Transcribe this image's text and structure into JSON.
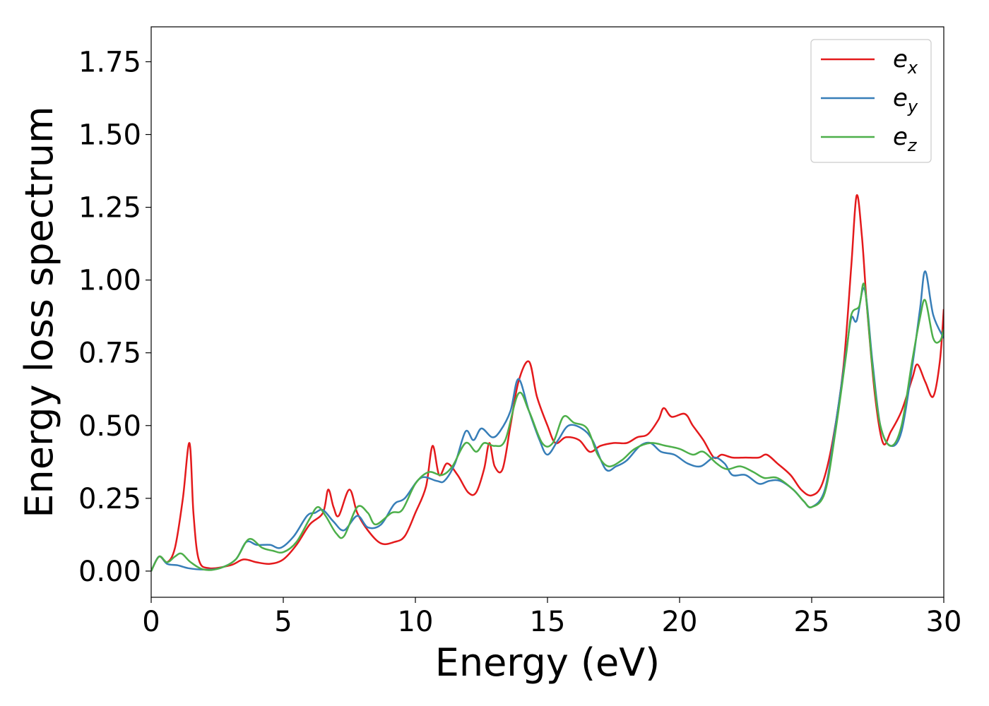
{
  "chart_data": {
    "type": "line",
    "xlabel": "Energy (eV)",
    "ylabel": "Energy loss spectrum",
    "xlim": [
      0,
      30
    ],
    "ylim": [
      -0.09,
      1.87
    ],
    "xticks": [
      "0",
      "5",
      "10",
      "15",
      "20",
      "25",
      "30"
    ],
    "yticks": [
      "0.00",
      "0.25",
      "0.50",
      "0.75",
      "1.00",
      "1.25",
      "1.50",
      "1.75"
    ],
    "grid": false,
    "legend_position": "top-right",
    "series": [
      {
        "name": "e_x",
        "label_base": "e",
        "label_sub": "x",
        "color": "#e41a1c",
        "points": [
          [
            0,
            0.0
          ],
          [
            0.3,
            0.05
          ],
          [
            0.6,
            0.03
          ],
          [
            0.9,
            0.08
          ],
          [
            1.2,
            0.25
          ],
          [
            1.45,
            0.44
          ],
          [
            1.6,
            0.2
          ],
          [
            1.8,
            0.04
          ],
          [
            2.2,
            0.01
          ],
          [
            3.0,
            0.02
          ],
          [
            3.5,
            0.04
          ],
          [
            4.0,
            0.03
          ],
          [
            4.5,
            0.025
          ],
          [
            5.0,
            0.04
          ],
          [
            5.5,
            0.09
          ],
          [
            6.0,
            0.16
          ],
          [
            6.5,
            0.2
          ],
          [
            6.7,
            0.28
          ],
          [
            6.9,
            0.22
          ],
          [
            7.1,
            0.19
          ],
          [
            7.5,
            0.28
          ],
          [
            7.8,
            0.2
          ],
          [
            8.2,
            0.14
          ],
          [
            8.7,
            0.095
          ],
          [
            9.2,
            0.1
          ],
          [
            9.6,
            0.12
          ],
          [
            10.0,
            0.2
          ],
          [
            10.4,
            0.29
          ],
          [
            10.65,
            0.43
          ],
          [
            10.9,
            0.33
          ],
          [
            11.2,
            0.37
          ],
          [
            11.6,
            0.33
          ],
          [
            12.0,
            0.27
          ],
          [
            12.3,
            0.27
          ],
          [
            12.6,
            0.35
          ],
          [
            12.8,
            0.44
          ],
          [
            13.0,
            0.36
          ],
          [
            13.3,
            0.35
          ],
          [
            13.6,
            0.5
          ],
          [
            13.9,
            0.65
          ],
          [
            14.3,
            0.72
          ],
          [
            14.6,
            0.6
          ],
          [
            15.0,
            0.5
          ],
          [
            15.3,
            0.44
          ],
          [
            15.7,
            0.46
          ],
          [
            16.2,
            0.45
          ],
          [
            16.6,
            0.41
          ],
          [
            17.0,
            0.43
          ],
          [
            17.5,
            0.44
          ],
          [
            18.0,
            0.44
          ],
          [
            18.4,
            0.46
          ],
          [
            18.8,
            0.47
          ],
          [
            19.2,
            0.52
          ],
          [
            19.4,
            0.56
          ],
          [
            19.7,
            0.53
          ],
          [
            20.2,
            0.54
          ],
          [
            20.5,
            0.5
          ],
          [
            20.9,
            0.45
          ],
          [
            21.3,
            0.39
          ],
          [
            21.6,
            0.4
          ],
          [
            22.0,
            0.39
          ],
          [
            22.5,
            0.39
          ],
          [
            23.0,
            0.39
          ],
          [
            23.3,
            0.4
          ],
          [
            23.7,
            0.37
          ],
          [
            24.2,
            0.33
          ],
          [
            24.6,
            0.28
          ],
          [
            25.0,
            0.26
          ],
          [
            25.4,
            0.3
          ],
          [
            25.8,
            0.45
          ],
          [
            26.2,
            0.7
          ],
          [
            26.5,
            1.05
          ],
          [
            26.7,
            1.29
          ],
          [
            26.9,
            1.15
          ],
          [
            27.1,
            0.9
          ],
          [
            27.4,
            0.6
          ],
          [
            27.7,
            0.44
          ],
          [
            28.0,
            0.48
          ],
          [
            28.4,
            0.55
          ],
          [
            28.8,
            0.66
          ],
          [
            29.0,
            0.71
          ],
          [
            29.3,
            0.65
          ],
          [
            29.6,
            0.6
          ],
          [
            29.85,
            0.72
          ],
          [
            30.0,
            0.9
          ]
        ]
      },
      {
        "name": "e_y",
        "label_base": "e",
        "label_sub": "y",
        "color": "#377eb8",
        "points": [
          [
            0,
            0.0
          ],
          [
            0.3,
            0.05
          ],
          [
            0.6,
            0.025
          ],
          [
            1.0,
            0.02
          ],
          [
            1.4,
            0.01
          ],
          [
            2.0,
            0.005
          ],
          [
            2.6,
            0.01
          ],
          [
            3.2,
            0.04
          ],
          [
            3.6,
            0.1
          ],
          [
            4.0,
            0.09
          ],
          [
            4.5,
            0.09
          ],
          [
            4.9,
            0.08
          ],
          [
            5.4,
            0.12
          ],
          [
            5.9,
            0.19
          ],
          [
            6.2,
            0.2
          ],
          [
            6.5,
            0.21
          ],
          [
            6.9,
            0.17
          ],
          [
            7.3,
            0.14
          ],
          [
            7.8,
            0.19
          ],
          [
            8.2,
            0.15
          ],
          [
            8.7,
            0.16
          ],
          [
            9.2,
            0.23
          ],
          [
            9.6,
            0.25
          ],
          [
            10.2,
            0.32
          ],
          [
            10.8,
            0.31
          ],
          [
            11.1,
            0.31
          ],
          [
            11.5,
            0.37
          ],
          [
            11.9,
            0.48
          ],
          [
            12.2,
            0.45
          ],
          [
            12.5,
            0.49
          ],
          [
            12.9,
            0.46
          ],
          [
            13.2,
            0.48
          ],
          [
            13.6,
            0.55
          ],
          [
            13.9,
            0.66
          ],
          [
            14.3,
            0.55
          ],
          [
            14.7,
            0.45
          ],
          [
            15.0,
            0.4
          ],
          [
            15.4,
            0.45
          ],
          [
            15.8,
            0.5
          ],
          [
            16.3,
            0.49
          ],
          [
            16.7,
            0.45
          ],
          [
            17.2,
            0.35
          ],
          [
            17.6,
            0.36
          ],
          [
            18.0,
            0.38
          ],
          [
            18.5,
            0.43
          ],
          [
            18.9,
            0.44
          ],
          [
            19.3,
            0.41
          ],
          [
            19.8,
            0.4
          ],
          [
            20.3,
            0.37
          ],
          [
            20.8,
            0.36
          ],
          [
            21.3,
            0.39
          ],
          [
            21.7,
            0.37
          ],
          [
            22.0,
            0.33
          ],
          [
            22.5,
            0.33
          ],
          [
            23.0,
            0.3
          ],
          [
            23.4,
            0.31
          ],
          [
            23.8,
            0.31
          ],
          [
            24.3,
            0.28
          ],
          [
            24.7,
            0.24
          ],
          [
            25.0,
            0.22
          ],
          [
            25.5,
            0.28
          ],
          [
            25.9,
            0.5
          ],
          [
            26.3,
            0.75
          ],
          [
            26.5,
            0.87
          ],
          [
            26.7,
            0.86
          ],
          [
            27.0,
            0.97
          ],
          [
            27.3,
            0.72
          ],
          [
            27.6,
            0.5
          ],
          [
            28.0,
            0.43
          ],
          [
            28.4,
            0.48
          ],
          [
            28.8,
            0.7
          ],
          [
            29.1,
            0.9
          ],
          [
            29.3,
            1.03
          ],
          [
            29.6,
            0.88
          ],
          [
            30.0,
            0.8
          ]
        ]
      },
      {
        "name": "e_z",
        "label_base": "e",
        "label_sub": "z",
        "color": "#4daf4a",
        "points": [
          [
            0,
            0.0
          ],
          [
            0.3,
            0.05
          ],
          [
            0.6,
            0.03
          ],
          [
            0.9,
            0.05
          ],
          [
            1.15,
            0.06
          ],
          [
            1.5,
            0.03
          ],
          [
            2.0,
            0.005
          ],
          [
            2.6,
            0.01
          ],
          [
            3.2,
            0.04
          ],
          [
            3.7,
            0.11
          ],
          [
            4.2,
            0.08
          ],
          [
            4.6,
            0.07
          ],
          [
            5.0,
            0.065
          ],
          [
            5.5,
            0.1
          ],
          [
            6.0,
            0.18
          ],
          [
            6.3,
            0.22
          ],
          [
            6.6,
            0.19
          ],
          [
            7.0,
            0.13
          ],
          [
            7.3,
            0.12
          ],
          [
            7.8,
            0.22
          ],
          [
            8.2,
            0.2
          ],
          [
            8.5,
            0.16
          ],
          [
            9.1,
            0.2
          ],
          [
            9.5,
            0.21
          ],
          [
            10.0,
            0.3
          ],
          [
            10.5,
            0.34
          ],
          [
            11.0,
            0.33
          ],
          [
            11.4,
            0.36
          ],
          [
            11.9,
            0.44
          ],
          [
            12.3,
            0.41
          ],
          [
            12.6,
            0.44
          ],
          [
            13.0,
            0.43
          ],
          [
            13.4,
            0.45
          ],
          [
            13.9,
            0.61
          ],
          [
            14.3,
            0.55
          ],
          [
            14.8,
            0.44
          ],
          [
            15.2,
            0.44
          ],
          [
            15.6,
            0.53
          ],
          [
            16.0,
            0.51
          ],
          [
            16.5,
            0.49
          ],
          [
            16.9,
            0.4
          ],
          [
            17.3,
            0.36
          ],
          [
            17.8,
            0.38
          ],
          [
            18.3,
            0.42
          ],
          [
            18.9,
            0.44
          ],
          [
            19.5,
            0.43
          ],
          [
            20.0,
            0.42
          ],
          [
            20.5,
            0.4
          ],
          [
            20.9,
            0.41
          ],
          [
            21.4,
            0.37
          ],
          [
            21.8,
            0.35
          ],
          [
            22.3,
            0.36
          ],
          [
            22.8,
            0.34
          ],
          [
            23.2,
            0.32
          ],
          [
            23.7,
            0.32
          ],
          [
            24.3,
            0.28
          ],
          [
            24.7,
            0.24
          ],
          [
            25.0,
            0.22
          ],
          [
            25.5,
            0.27
          ],
          [
            25.9,
            0.48
          ],
          [
            26.3,
            0.74
          ],
          [
            26.5,
            0.88
          ],
          [
            26.8,
            0.91
          ],
          [
            27.0,
            0.98
          ],
          [
            27.3,
            0.7
          ],
          [
            27.6,
            0.5
          ],
          [
            28.0,
            0.43
          ],
          [
            28.4,
            0.5
          ],
          [
            28.8,
            0.72
          ],
          [
            29.1,
            0.87
          ],
          [
            29.3,
            0.93
          ],
          [
            29.6,
            0.8
          ],
          [
            29.85,
            0.79
          ],
          [
            30.0,
            0.83
          ]
        ]
      }
    ]
  }
}
